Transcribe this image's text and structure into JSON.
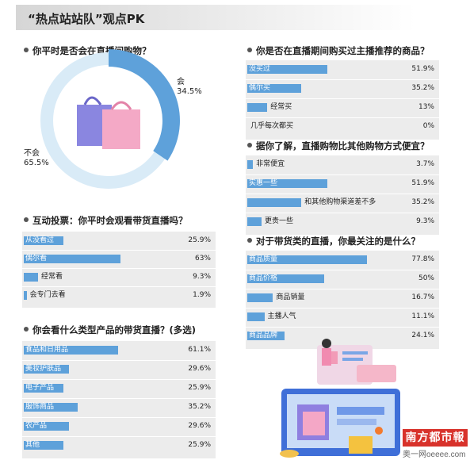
{
  "title": "“热点站站队”观点PK",
  "colors": {
    "bar": "#5ea1da",
    "panel": "#ececec",
    "pie_main": "#5ea1da",
    "pie_light": "#d9ebf7"
  },
  "chart_data": [
    {
      "type": "pie",
      "title": "你平时是否会在直播间购物？",
      "categories": [
        "会",
        "不会"
      ],
      "values": [
        34.5,
        65.5
      ],
      "value_labels": [
        "34.5%",
        "65.5%"
      ]
    },
    {
      "type": "bar",
      "title": "互动投票：你平时会观看带货直播吗？",
      "categories": [
        "从没看过",
        "偶尔看",
        "经常看",
        "会专门去看"
      ],
      "values": [
        25.9,
        63,
        9.3,
        1.9
      ],
      "value_labels": [
        "25.9%",
        "63%",
        "9.3%",
        "1.9%"
      ]
    },
    {
      "type": "bar",
      "title": "你会看什么类型产品的带货直播？(多选)",
      "categories": [
        "食品和日用品",
        "美妆护肤品",
        "电子产品",
        "服饰商品",
        "农产品",
        "其他"
      ],
      "values": [
        61.1,
        29.6,
        25.9,
        35.2,
        29.6,
        25.9
      ],
      "value_labels": [
        "61.1%",
        "29.6%",
        "25.9%",
        "35.2%",
        "29.6%",
        "25.9%"
      ]
    },
    {
      "type": "bar",
      "title": "你是否在直播期间购买过主播推荐的商品？",
      "categories": [
        "没买过",
        "偶尔买",
        "经常买",
        "几乎每次都买"
      ],
      "values": [
        51.9,
        35.2,
        13,
        0
      ],
      "value_labels": [
        "51.9%",
        "35.2%",
        "13%",
        "0%"
      ]
    },
    {
      "type": "bar",
      "title": "据你了解，直播购物比其他购物方式便宜？",
      "categories": [
        "非常便宜",
        "实惠一些",
        "和其他购物渠道差不多",
        "更贵一些"
      ],
      "values": [
        3.7,
        51.9,
        35.2,
        9.3
      ],
      "value_labels": [
        "3.7%",
        "51.9%",
        "35.2%",
        "9.3%"
      ]
    },
    {
      "type": "bar",
      "title": "对于带货类的直播，你最关注的是什么？",
      "categories": [
        "商品质量",
        "商品价格",
        "商品销量",
        "主播人气",
        "商品品牌"
      ],
      "values": [
        77.8,
        50,
        16.7,
        11.1,
        24.1
      ],
      "value_labels": [
        "77.8%",
        "50%",
        "16.7%",
        "11.1%",
        "24.1%"
      ]
    }
  ],
  "logo": {
    "name": "南方都市報",
    "site": "奥一网oeeee.com"
  }
}
